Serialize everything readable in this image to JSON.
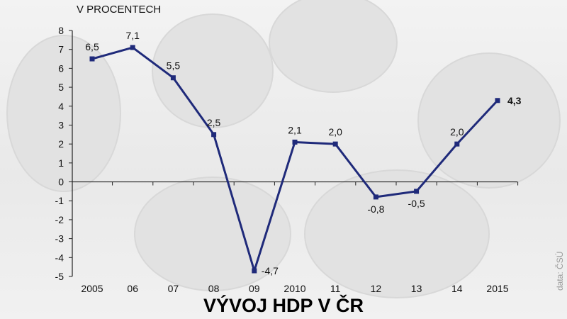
{
  "chart_data": {
    "type": "line",
    "title": "VÝVOJ HDP V ČR",
    "unit_label": "V PROCENTECH",
    "source": "data: ČSÚ",
    "xlabel": "",
    "ylabel": "",
    "ylim": [
      -5,
      8
    ],
    "yticks": [
      "8",
      "7",
      "6",
      "5",
      "4",
      "3",
      "2",
      "1",
      "0",
      "-1",
      "-2",
      "-3",
      "-4",
      "-5"
    ],
    "categories": [
      "2005",
      "06",
      "07",
      "08",
      "09",
      "2010",
      "11",
      "12",
      "13",
      "14",
      "2015"
    ],
    "values": [
      6.5,
      7.1,
      5.5,
      2.5,
      -4.7,
      2.1,
      2.0,
      -0.8,
      -0.5,
      2.0,
      4.3
    ],
    "data_labels": [
      "6,5",
      "7,1",
      "5,5",
      "2,5",
      "-4,7",
      "2,1",
      "2,0",
      "-0,8",
      "-0,5",
      "2,0",
      "4,3"
    ],
    "grid": false,
    "legend": "none",
    "line_color": "#1f2a7a",
    "background_color": "#eeeeee"
  }
}
